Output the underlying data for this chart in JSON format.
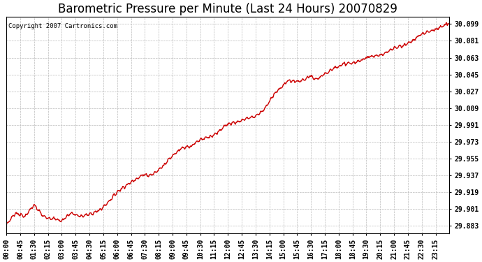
{
  "title": "Barometric Pressure per Minute (Last 24 Hours) 20070829",
  "copyright_text": "Copyright 2007 Cartronics.com",
  "line_color": "#cc0000",
  "background_color": "#ffffff",
  "plot_bg_color": "#ffffff",
  "grid_color": "#bbbbbb",
  "yticks": [
    29.883,
    29.901,
    29.919,
    29.937,
    29.955,
    29.973,
    29.991,
    30.009,
    30.027,
    30.045,
    30.063,
    30.081,
    30.099
  ],
  "ylim_min": 29.875,
  "ylim_max": 30.107,
  "xtick_labels": [
    "00:00",
    "00:45",
    "01:30",
    "02:15",
    "03:00",
    "03:45",
    "04:30",
    "05:15",
    "06:00",
    "06:45",
    "07:30",
    "08:15",
    "09:00",
    "09:45",
    "10:30",
    "11:15",
    "12:00",
    "12:45",
    "13:30",
    "14:15",
    "15:00",
    "15:45",
    "16:30",
    "17:15",
    "18:00",
    "18:45",
    "19:30",
    "20:15",
    "21:00",
    "21:45",
    "22:30",
    "23:15"
  ],
  "title_fontsize": 12,
  "copyright_fontsize": 6.5,
  "tick_fontsize": 7,
  "line_width": 1.0
}
